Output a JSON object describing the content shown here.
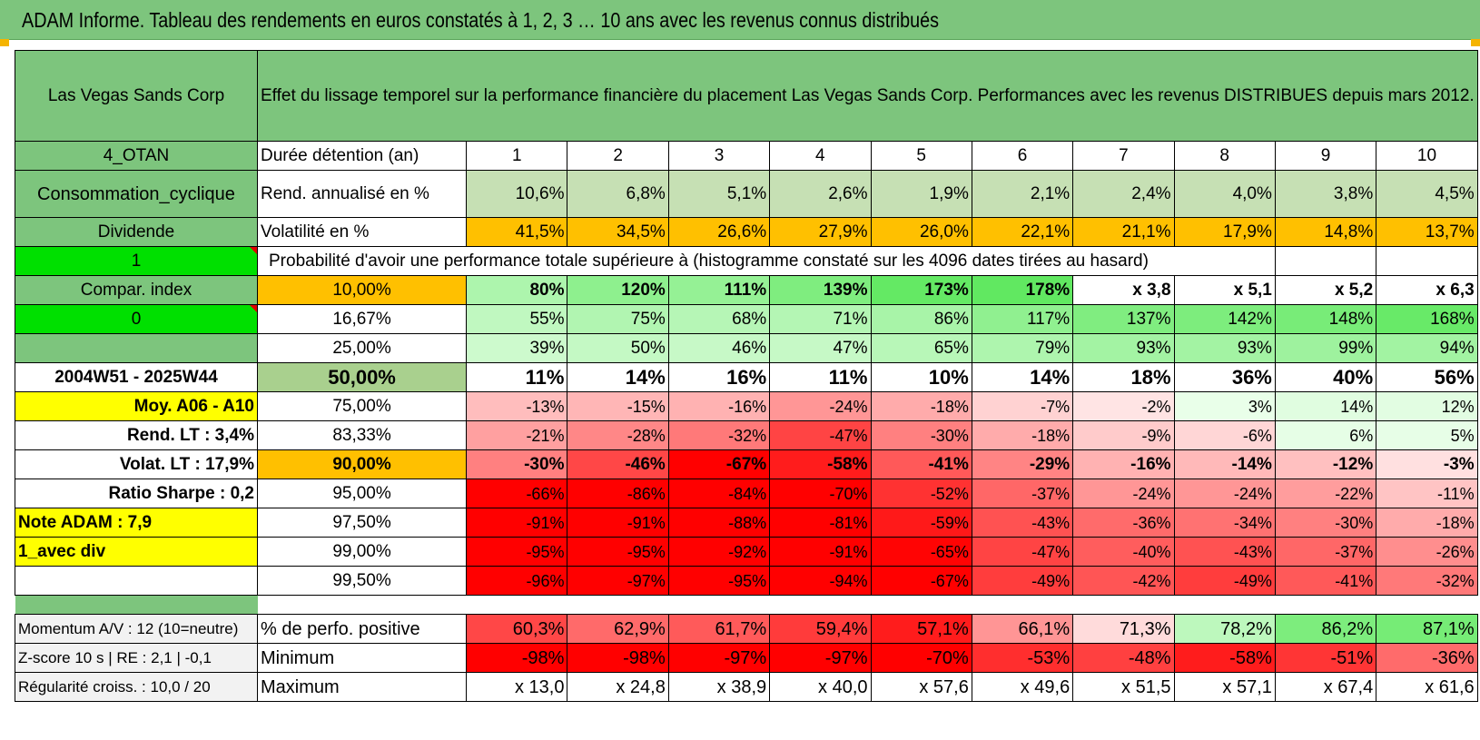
{
  "header": {
    "title": "ADAM Informe. Tableau des rendements en euros constatés à 1, 2, 3 … 10 ans avec les revenus connus distribués"
  },
  "colors": {
    "green_header": "#7dc57d",
    "highlight_yellow": "#ffff00",
    "highlight_green": "#00e000",
    "orange": "#ffc000",
    "label_red": "#d00000"
  },
  "table": {
    "company": "Las Vegas Sands Corp",
    "subtitle": "Effet du lissage temporel sur la performance financière du placement Las Vegas Sands Corp. Performances avec les revenus DISTRIBUES depuis mars 2012.",
    "info": {
      "code": "4_OTAN",
      "sector": "Consommation_cyclique",
      "type": "Dividende",
      "flag1": "1",
      "compar_index": "Compar. index",
      "flag0": "0",
      "period": "2004W51 - 2025W44",
      "moy": "Moy. A06 - A10",
      "rend_lt": "Rend. LT :   3,4%",
      "volat_lt": "Volat. LT :   17,9%",
      "sharpe": "Ratio Sharpe :    0,2",
      "note": "Note ADAM : 7,9",
      "variant": "1_avec div"
    },
    "years_label": "Durée détention (an)",
    "years": [
      "1",
      "2",
      "3",
      "4",
      "5",
      "6",
      "7",
      "8",
      "9",
      "10"
    ],
    "rend_label": "Rend. annualisé en %",
    "rend": [
      "10,6%",
      "6,8%",
      "5,1%",
      "2,6%",
      "1,9%",
      "2,1%",
      "2,4%",
      "4,0%",
      "3,8%",
      "4,5%"
    ],
    "vol_label": "Volatilité en %",
    "vol": [
      "41,5%",
      "34,5%",
      "26,6%",
      "27,9%",
      "26,0%",
      "22,1%",
      "21,1%",
      "17,9%",
      "14,8%",
      "13,7%"
    ],
    "prob_label": "Probabilité d'avoir une performance totale supérieure à (histogramme constaté sur les 4096 dates tirées au hasard)",
    "quantiles": [
      {
        "p": "10,00%",
        "vals": [
          "80%",
          "120%",
          "111%",
          "139%",
          "173%",
          "178%",
          "x 3,8",
          "x 5,1",
          "x 5,2",
          "x 6,3"
        ]
      },
      {
        "p": "16,67%",
        "vals": [
          "55%",
          "75%",
          "68%",
          "71%",
          "86%",
          "117%",
          "137%",
          "142%",
          "148%",
          "168%"
        ]
      },
      {
        "p": "25,00%",
        "vals": [
          "39%",
          "50%",
          "46%",
          "47%",
          "65%",
          "79%",
          "93%",
          "93%",
          "99%",
          "94%"
        ]
      },
      {
        "p": "50,00%",
        "vals": [
          "11%",
          "14%",
          "16%",
          "11%",
          "10%",
          "14%",
          "18%",
          "36%",
          "40%",
          "56%"
        ]
      },
      {
        "p": "75,00%",
        "vals": [
          "-13%",
          "-15%",
          "-16%",
          "-24%",
          "-18%",
          "-7%",
          "-2%",
          "3%",
          "14%",
          "12%"
        ]
      },
      {
        "p": "83,33%",
        "vals": [
          "-21%",
          "-28%",
          "-32%",
          "-47%",
          "-30%",
          "-18%",
          "-9%",
          "-6%",
          "6%",
          "5%"
        ]
      },
      {
        "p": "90,00%",
        "vals": [
          "-30%",
          "-46%",
          "-67%",
          "-58%",
          "-41%",
          "-29%",
          "-16%",
          "-14%",
          "-12%",
          "-3%"
        ]
      },
      {
        "p": "95,00%",
        "vals": [
          "-66%",
          "-86%",
          "-84%",
          "-70%",
          "-52%",
          "-37%",
          "-24%",
          "-24%",
          "-22%",
          "-11%"
        ]
      },
      {
        "p": "97,50%",
        "vals": [
          "-91%",
          "-91%",
          "-88%",
          "-81%",
          "-59%",
          "-43%",
          "-36%",
          "-34%",
          "-30%",
          "-18%"
        ]
      },
      {
        "p": "99,00%",
        "vals": [
          "-95%",
          "-95%",
          "-92%",
          "-91%",
          "-65%",
          "-47%",
          "-40%",
          "-43%",
          "-37%",
          "-26%"
        ]
      },
      {
        "p": "99,50%",
        "vals": [
          "-96%",
          "-97%",
          "-95%",
          "-94%",
          "-67%",
          "-49%",
          "-42%",
          "-49%",
          "-41%",
          "-32%"
        ]
      }
    ],
    "stats": [
      {
        "left": "Momentum A/V : 12 (10=neutre)",
        "label": "% de perfo. positive",
        "vals": [
          "60,3%",
          "62,9%",
          "61,7%",
          "59,4%",
          "57,1%",
          "66,1%",
          "71,3%",
          "78,2%",
          "86,2%",
          "87,1%"
        ]
      },
      {
        "left": "Z-score 10 s | RE : 2,1 | -0,1",
        "label": "Minimum",
        "vals": [
          "-98%",
          "-98%",
          "-97%",
          "-97%",
          "-70%",
          "-53%",
          "-48%",
          "-58%",
          "-51%",
          "-36%"
        ]
      },
      {
        "left": "Régularité croiss. : 10,0 / 20",
        "label": "Maximum",
        "vals": [
          "x 13,0",
          "x 24,8",
          "x 38,9",
          "x 40,0",
          "x 57,6",
          "x 49,6",
          "x 51,5",
          "x 57,1",
          "x 67,4",
          "x 61,6"
        ]
      }
    ]
  }
}
